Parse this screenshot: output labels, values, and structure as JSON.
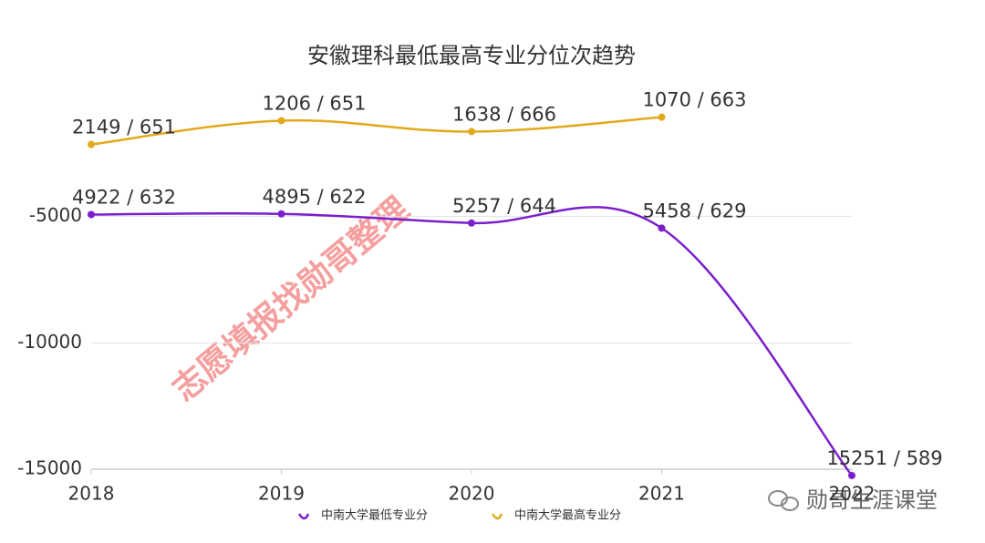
{
  "chart_data": {
    "type": "line",
    "title": "安徽理科最低最高专业分位次趋势",
    "categories": [
      "2018",
      "2019",
      "2020",
      "2021",
      "2022"
    ],
    "series": [
      {
        "name": "中南大学最低专业分",
        "color": "#7b1fcc",
        "values": [
          -4922,
          -4895,
          -5257,
          -5458,
          -15251
        ],
        "value_labels": [
          "4922 / 632",
          "4895 / 622",
          "5257 / 644",
          "5458 / 629",
          "15251 / 589"
        ]
      },
      {
        "name": "中南大学最高专业分",
        "color": "#e2a91c",
        "values": [
          -2149,
          -1206,
          -1638,
          -1070,
          null
        ],
        "value_labels": [
          "2149 / 651",
          "1206 / 651",
          "1638 / 666",
          "1070 / 663",
          null
        ]
      }
    ],
    "ylim": [
      -15000,
      0
    ],
    "yticks": [
      -15000,
      -10000,
      -5000
    ],
    "grid": true,
    "legend": "bottom",
    "watermark": "志愿填报找勋哥整理",
    "brand": "勋哥生涯课堂"
  }
}
